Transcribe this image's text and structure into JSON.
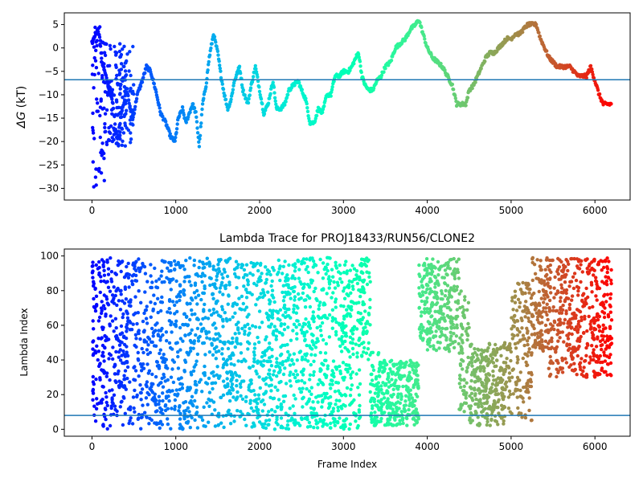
{
  "chart_data": [
    {
      "type": "scatter",
      "title": "",
      "xlabel": "",
      "ylabel_var": "ΔG",
      "ylabel_unit": "(kT)",
      "xlim": [
        -330,
        6420
      ],
      "ylim": [
        -32.5,
        7.5
      ],
      "xticks": [
        0,
        1000,
        2000,
        3000,
        4000,
        5000,
        6000
      ],
      "yticks": [
        5,
        0,
        -5,
        -10,
        -15,
        -20,
        -25,
        -30
      ],
      "hline": -6.8,
      "hline_color": "#1f77b4",
      "colormap": "rainbow",
      "x_max": 6200,
      "trace": [
        [
          0,
          1
        ],
        [
          40,
          3
        ],
        [
          80,
          4
        ],
        [
          120,
          -3
        ],
        [
          180,
          -7
        ],
        [
          250,
          -12
        ],
        [
          300,
          -20
        ],
        [
          360,
          -13
        ],
        [
          420,
          -9
        ],
        [
          480,
          -16
        ],
        [
          540,
          -10
        ],
        [
          600,
          -7
        ],
        [
          650,
          -4
        ],
        [
          700,
          -5
        ],
        [
          760,
          -9
        ],
        [
          820,
          -14
        ],
        [
          880,
          -16
        ],
        [
          940,
          -19
        ],
        [
          990,
          -20
        ],
        [
          1030,
          -15
        ],
        [
          1080,
          -13
        ],
        [
          1120,
          -16
        ],
        [
          1160,
          -14
        ],
        [
          1200,
          -12
        ],
        [
          1240,
          -14
        ],
        [
          1280,
          -21
        ],
        [
          1320,
          -12
        ],
        [
          1360,
          -8
        ],
        [
          1400,
          -2
        ],
        [
          1450,
          3
        ],
        [
          1500,
          -1
        ],
        [
          1540,
          -6
        ],
        [
          1580,
          -10
        ],
        [
          1620,
          -13
        ],
        [
          1660,
          -11
        ],
        [
          1700,
          -7
        ],
        [
          1760,
          -4
        ],
        [
          1800,
          -9
        ],
        [
          1860,
          -12
        ],
        [
          1900,
          -8
        ],
        [
          1950,
          -4
        ],
        [
          2000,
          -9
        ],
        [
          2050,
          -14
        ],
        [
          2100,
          -12
        ],
        [
          2160,
          -7
        ],
        [
          2200,
          -13
        ],
        [
          2250,
          -13
        ],
        [
          2300,
          -12
        ],
        [
          2350,
          -9
        ],
        [
          2400,
          -8
        ],
        [
          2460,
          -7
        ],
        [
          2500,
          -9
        ],
        [
          2550,
          -11
        ],
        [
          2600,
          -16
        ],
        [
          2650,
          -16
        ],
        [
          2700,
          -13
        ],
        [
          2750,
          -14
        ],
        [
          2800,
          -10
        ],
        [
          2850,
          -10
        ],
        [
          2900,
          -6
        ],
        [
          2950,
          -6
        ],
        [
          3000,
          -5
        ],
        [
          3060,
          -5
        ],
        [
          3100,
          -4
        ],
        [
          3150,
          -2
        ],
        [
          3180,
          -1
        ],
        [
          3220,
          -6
        ],
        [
          3260,
          -8
        ],
        [
          3300,
          -9
        ],
        [
          3350,
          -9
        ],
        [
          3400,
          -7
        ],
        [
          3450,
          -6
        ],
        [
          3500,
          -4
        ],
        [
          3560,
          -3
        ],
        [
          3620,
          0
        ],
        [
          3680,
          1
        ],
        [
          3740,
          2
        ],
        [
          3800,
          4
        ],
        [
          3860,
          5
        ],
        [
          3900,
          6
        ],
        [
          3950,
          3
        ],
        [
          4000,
          0
        ],
        [
          4060,
          -2
        ],
        [
          4120,
          -3
        ],
        [
          4180,
          -4
        ],
        [
          4240,
          -6
        ],
        [
          4300,
          -8
        ],
        [
          4350,
          -12
        ],
        [
          4420,
          -12
        ],
        [
          4460,
          -12
        ],
        [
          4500,
          -9
        ],
        [
          4550,
          -8
        ],
        [
          4600,
          -6
        ],
        [
          4650,
          -4
        ],
        [
          4700,
          -2
        ],
        [
          4750,
          -1
        ],
        [
          4800,
          -1
        ],
        [
          4850,
          0
        ],
        [
          4900,
          1
        ],
        [
          4950,
          2
        ],
        [
          5000,
          2
        ],
        [
          5050,
          3
        ],
        [
          5100,
          3
        ],
        [
          5150,
          4
        ],
        [
          5200,
          5
        ],
        [
          5250,
          5
        ],
        [
          5300,
          5
        ],
        [
          5350,
          2
        ],
        [
          5400,
          0
        ],
        [
          5450,
          -2
        ],
        [
          5500,
          -3
        ],
        [
          5550,
          -4
        ],
        [
          5600,
          -4
        ],
        [
          5650,
          -4
        ],
        [
          5700,
          -4
        ],
        [
          5750,
          -5
        ],
        [
          5800,
          -6
        ],
        [
          5850,
          -6
        ],
        [
          5900,
          -6
        ],
        [
          5950,
          -4
        ],
        [
          6000,
          -7
        ],
        [
          6050,
          -10
        ],
        [
          6100,
          -12
        ],
        [
          6150,
          -12
        ],
        [
          6200,
          -12
        ]
      ]
    },
    {
      "type": "scatter",
      "title": "Lambda Trace for PROJ18433/RUN56/CLONE2",
      "xlabel": "Frame Index",
      "ylabel": "Lambda Index",
      "xlim": [
        -330,
        6420
      ],
      "ylim": [
        -4,
        104
      ],
      "xticks": [
        0,
        1000,
        2000,
        3000,
        4000,
        5000,
        6000
      ],
      "yticks": [
        0,
        20,
        40,
        60,
        80,
        100
      ],
      "hline": 8,
      "hline_color": "#1f77b4",
      "colormap": "rainbow",
      "x_max": 6200,
      "regimes": [
        [
          0,
          3200,
          0,
          99
        ],
        [
          3200,
          3320,
          40,
          99
        ],
        [
          3320,
          3420,
          2,
          45
        ],
        [
          3420,
          3900,
          2,
          40
        ],
        [
          3900,
          4000,
          50,
          99
        ],
        [
          4000,
          4380,
          45,
          99
        ],
        [
          4380,
          4500,
          10,
          80
        ],
        [
          4500,
          5000,
          2,
          50
        ],
        [
          5000,
          5250,
          5,
          85
        ],
        [
          5250,
          5450,
          45,
          99
        ],
        [
          5450,
          6200,
          30,
          99
        ]
      ]
    }
  ]
}
